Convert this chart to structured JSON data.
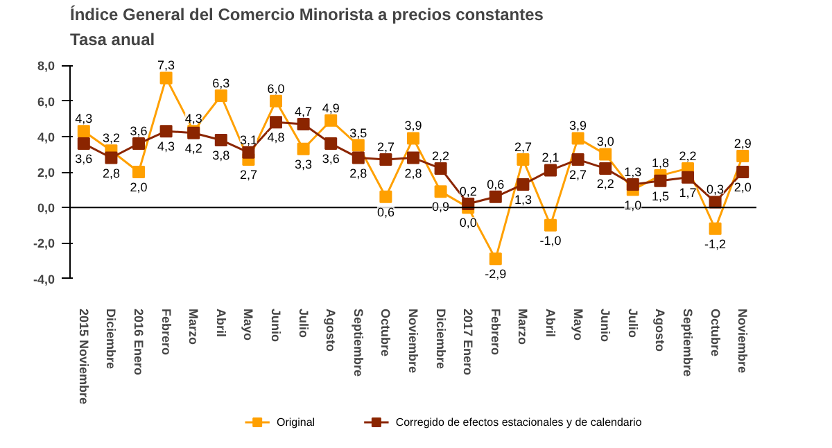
{
  "chart_data": {
    "type": "line",
    "title": "Índice General del Comercio Minorista a precios constantes",
    "subtitle": "Tasa anual",
    "categories": [
      "2015 Noviembre",
      "Diciembre",
      "2016 Enero",
      "Febrero",
      "Marzo",
      "Abril",
      "Mayo",
      "Junio",
      "Julio",
      "Agosto",
      "Septiembre",
      "Octubre",
      "Noviembre",
      "Diciembre",
      "2017 Enero",
      "Febrero",
      "Marzo",
      "Abril",
      "Mayo",
      "Junio",
      "Julio",
      "Agosto",
      "Septiembre",
      "Octubre",
      "Noviembre"
    ],
    "series": [
      {
        "name": "Original",
        "color": "#ffa000",
        "values": [
          4.3,
          3.2,
          2.0,
          7.3,
          4.3,
          6.3,
          2.7,
          6.0,
          3.3,
          4.9,
          3.5,
          0.6,
          3.9,
          0.9,
          0.0,
          -2.9,
          2.7,
          -1.0,
          3.9,
          3.0,
          1.0,
          1.8,
          2.2,
          -1.2,
          2.9
        ],
        "value_labels": [
          "4,3",
          "3,2",
          "2,0",
          "7,3",
          "4,3",
          "6,3",
          "2,7",
          "6,0",
          "3,3",
          "4,9",
          "3,5",
          "0,6",
          "3,9",
          "0,9",
          "0,0",
          "-2,9",
          "2,7",
          "-1,0",
          "3,9",
          "3,0",
          "1,0",
          "1,8",
          "2,2",
          "-1,2",
          "2,9"
        ]
      },
      {
        "name": "Corregido de efectos estacionales y de calendario",
        "color": "#8b2500",
        "values": [
          3.6,
          2.8,
          3.6,
          4.3,
          4.2,
          3.8,
          3.1,
          4.8,
          4.7,
          3.6,
          2.8,
          2.7,
          2.8,
          2.2,
          0.2,
          0.6,
          1.3,
          2.1,
          2.7,
          2.2,
          1.3,
          1.5,
          1.7,
          0.3,
          2.0
        ],
        "value_labels": [
          "3,6",
          "2,8",
          "3,6",
          "4,3",
          "4,2",
          "3,8",
          "3,1",
          "4,8",
          "4,7",
          "3,6",
          "2,8",
          "2,7",
          "2,8",
          "2,2",
          "0,2",
          "0,6",
          "1,3",
          "2,1",
          "2,7",
          "2,2",
          "1,3",
          "1,5",
          "1,7",
          "0,3",
          "2,0"
        ]
      }
    ],
    "ylim": [
      -4,
      8
    ],
    "yticks": [
      {
        "value": -4,
        "label": "-4,0"
      },
      {
        "value": -2,
        "label": "-2,0"
      },
      {
        "value": 0,
        "label": "0,0"
      },
      {
        "value": 2,
        "label": "2,0"
      },
      {
        "value": 4,
        "label": "4,0"
      },
      {
        "value": 6,
        "label": "6,0"
      },
      {
        "value": 8,
        "label": "8,0"
      }
    ],
    "ref_lines": [
      {
        "axis": "y",
        "value": 0,
        "color": "#000000"
      }
    ],
    "marker": "square",
    "line_style": "solid",
    "grid": false,
    "legend": "bottom"
  }
}
